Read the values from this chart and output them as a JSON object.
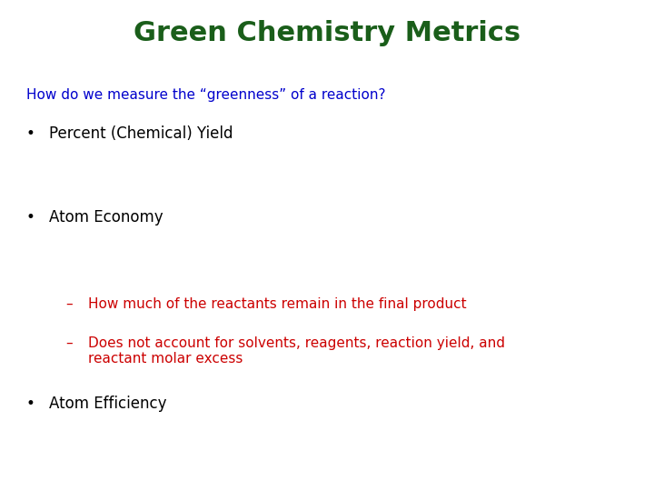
{
  "title": "Green Chemistry Metrics",
  "title_color": "#1a5e1a",
  "title_fontsize": 22,
  "background_color": "#ffffff",
  "question": "How do we measure the “greenness” of a reaction?",
  "question_color": "#0000cc",
  "question_fontsize": 11,
  "bullet1": "Percent (Chemical) Yield",
  "bullet1_color": "#000000",
  "bullet1_fontsize": 12,
  "bullet2": "Atom Economy",
  "bullet2_color": "#000000",
  "bullet2_fontsize": 12,
  "sub1": "How much of the reactants remain in the final product",
  "sub1_color": "#cc0000",
  "sub1_fontsize": 11,
  "sub2": "Does not account for solvents, reagents, reaction yield, and\nreactant molar excess",
  "sub2_color": "#cc0000",
  "sub2_fontsize": 11,
  "bullet3": "Atom Efficiency",
  "bullet3_color": "#000000",
  "bullet3_fontsize": 12
}
